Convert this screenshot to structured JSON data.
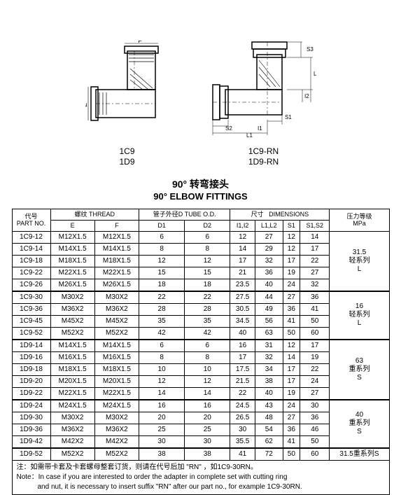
{
  "diagrams": {
    "left": {
      "label1": "1C9",
      "label2": "1D9",
      "dim_f": "F",
      "dim_e": "E"
    },
    "right": {
      "label1": "1C9-RN",
      "label2": "1D9-RN",
      "d2": "D2",
      "s3": "S3",
      "l2": "L2",
      "i2": "I2",
      "s1": "S1",
      "i1": "I1",
      "l1": "L1",
      "s2": "S2"
    }
  },
  "title_cn": "90°  转弯接头",
  "title_en": "90°  ELBOW FITTINGS",
  "headers": {
    "partno_cn": "代号",
    "partno_en": "PART NO.",
    "thread_cn": "螺纹",
    "thread_en": "THREAD",
    "tubeod_cn": "管子外径D",
    "tubeod_en": "TUBE O.D.",
    "dim_cn": "尺寸",
    "dim_en": "DIMENSIONS",
    "press_cn": "压力等级",
    "press_en": "MPa",
    "E": "E",
    "F": "F",
    "D1": "D1",
    "D2": "D2",
    "I": "I1,I2",
    "L": "L1,L2",
    "S1": "S1",
    "S": "S1,S2"
  },
  "rows": [
    {
      "pn": "1C9-12",
      "e": "M12X1.5",
      "f": "M12X1.5",
      "d1": "6",
      "d2": "6",
      "i": "12",
      "l": "27",
      "s1": "12",
      "s": "14"
    },
    {
      "pn": "1C9-14",
      "e": "M14X1.5",
      "f": "M14X1.5",
      "d1": "8",
      "d2": "8",
      "i": "14",
      "l": "29",
      "s1": "12",
      "s": "17"
    },
    {
      "pn": "1C9-18",
      "e": "M18X1.5",
      "f": "M18X1.5",
      "d1": "12",
      "d2": "12",
      "i": "17",
      "l": "32",
      "s1": "17",
      "s": "22"
    },
    {
      "pn": "1C9-22",
      "e": "M22X1.5",
      "f": "M22X1.5",
      "d1": "15",
      "d2": "15",
      "i": "21",
      "l": "36",
      "s1": "19",
      "s": "27"
    },
    {
      "pn": "1C9-26",
      "e": "M26X1.5",
      "f": "M26X1.5",
      "d1": "18",
      "d2": "18",
      "i": "23.5",
      "l": "40",
      "s1": "24",
      "s": "32"
    },
    {
      "pn": "1C9-30",
      "e": "M30X2",
      "f": "M30X2",
      "d1": "22",
      "d2": "22",
      "i": "27.5",
      "l": "44",
      "s1": "27",
      "s": "36",
      "sep": true
    },
    {
      "pn": "1C9-36",
      "e": "M36X2",
      "f": "M36X2",
      "d1": "28",
      "d2": "28",
      "i": "30.5",
      "l": "49",
      "s1": "36",
      "s": "41"
    },
    {
      "pn": "1C9-45",
      "e": "M45X2",
      "f": "M45X2",
      "d1": "35",
      "d2": "35",
      "i": "34.5",
      "l": "56",
      "s1": "41",
      "s": "50"
    },
    {
      "pn": "1C9-52",
      "e": "M52X2",
      "f": "M52X2",
      "d1": "42",
      "d2": "42",
      "i": "40",
      "l": "63",
      "s1": "50",
      "s": "60"
    },
    {
      "pn": "1D9-14",
      "e": "M14X1.5",
      "f": "M14X1.5",
      "d1": "6",
      "d2": "6",
      "i": "16",
      "l": "31",
      "s1": "12",
      "s": "17",
      "sep": true
    },
    {
      "pn": "1D9-16",
      "e": "M16X1.5",
      "f": "M16X1.5",
      "d1": "8",
      "d2": "8",
      "i": "17",
      "l": "32",
      "s1": "14",
      "s": "19"
    },
    {
      "pn": "1D9-18",
      "e": "M18X1.5",
      "f": "M18X1.5",
      "d1": "10",
      "d2": "10",
      "i": "17.5",
      "l": "34",
      "s1": "17",
      "s": "22"
    },
    {
      "pn": "1D9-20",
      "e": "M20X1.5",
      "f": "M20X1.5",
      "d1": "12",
      "d2": "12",
      "i": "21.5",
      "l": "38",
      "s1": "17",
      "s": "24"
    },
    {
      "pn": "1D9-22",
      "e": "M22X1.5",
      "f": "M22X1.5",
      "d1": "14",
      "d2": "14",
      "i": "22",
      "l": "40",
      "s1": "19",
      "s": "27"
    },
    {
      "pn": "1D9-24",
      "e": "M24X1.5",
      "f": "M24X1.5",
      "d1": "16",
      "d2": "16",
      "i": "24.5",
      "l": "43",
      "s1": "24",
      "s": "30",
      "sep": true
    },
    {
      "pn": "1D9-30",
      "e": "M30X2",
      "f": "M30X2",
      "d1": "20",
      "d2": "20",
      "i": "26.5",
      "l": "48",
      "s1": "27",
      "s": "36"
    },
    {
      "pn": "1D9-36",
      "e": "M36X2",
      "f": "M36X2",
      "d1": "25",
      "d2": "25",
      "i": "30",
      "l": "54",
      "s1": "36",
      "s": "46"
    },
    {
      "pn": "1D9-42",
      "e": "M42X2",
      "f": "M42X2",
      "d1": "30",
      "d2": "30",
      "i": "35.5",
      "l": "62",
      "s1": "41",
      "s": "50"
    },
    {
      "pn": "1D9-52",
      "e": "M52X2",
      "f": "M52X2",
      "d1": "38",
      "d2": "38",
      "i": "41",
      "l": "72",
      "s1": "50",
      "s": "60",
      "sep": true
    }
  ],
  "pressure_groups": [
    {
      "span": 5,
      "l1": "31.5",
      "l2": "轻系列",
      "l3": "L"
    },
    {
      "span": 4,
      "l1": "16",
      "l2": "轻系列",
      "l3": "L"
    },
    {
      "span": 5,
      "l1": "63",
      "l2": "重系列",
      "l3": "S"
    },
    {
      "span": 4,
      "l1": "40",
      "l2": "重系列",
      "l3": "S"
    },
    {
      "span": 1,
      "l1": "31.5重系列S",
      "l2": "",
      "l3": ""
    }
  ],
  "note_cn": "注：如需带卡套及卡套螺母整套订货，则请在代号后加 \"RN\" ，如1C9-30RN。",
  "note_en1": "Note：In case if you are interested to order the adapter in complete set with cutting ring",
  "note_en2": "and nut, it is necessary to insert suffix \"RN\" after our part no., for example 1C9-30RN."
}
